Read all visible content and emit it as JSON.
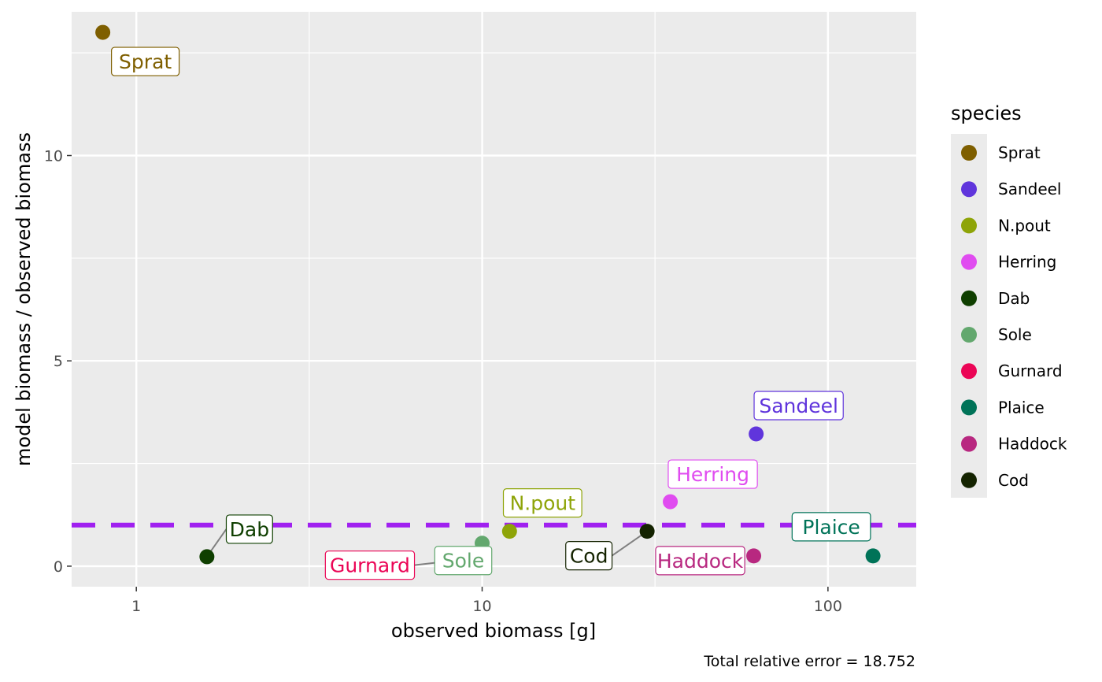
{
  "chart_data": {
    "type": "scatter",
    "title": "",
    "xlabel": "observed biomass [g]",
    "ylabel": "model biomass / observed biomass",
    "caption": "Total relative error = 18.752",
    "x_scale": "log10",
    "xlim": [
      0.65,
      180
    ],
    "ylim": [
      -0.5,
      13.5
    ],
    "x_ticks": [
      1,
      10,
      100
    ],
    "x_tick_labels": [
      "1",
      "10",
      "100"
    ],
    "y_ticks": [
      0,
      5,
      10
    ],
    "y_tick_labels": [
      "0",
      "5",
      "10"
    ],
    "reference_line": {
      "y": 1,
      "color": "#A020F0",
      "style": "dashed"
    },
    "legend": {
      "title": "species",
      "position": "right"
    },
    "points": [
      {
        "species": "Sprat",
        "x": 0.8,
        "y": 13.0,
        "color": "#7F5F00"
      },
      {
        "species": "Sandeel",
        "x": 62,
        "y": 3.22,
        "color": "#6035DC"
      },
      {
        "species": "N.pout",
        "x": 12,
        "y": 0.85,
        "color": "#8EA408"
      },
      {
        "species": "Herring",
        "x": 35,
        "y": 1.57,
        "color": "#E04CF0"
      },
      {
        "species": "Dab",
        "x": 1.6,
        "y": 0.23,
        "color": "#0F3F00"
      },
      {
        "species": "Sole",
        "x": 10,
        "y": 0.56,
        "color": "#63A86E"
      },
      {
        "species": "Gurnard",
        "x": 8,
        "y": 0.12,
        "color": "#EB0556"
      },
      {
        "species": "Plaice",
        "x": 135,
        "y": 0.25,
        "color": "#007358"
      },
      {
        "species": "Haddock",
        "x": 61,
        "y": 0.25,
        "color": "#B82880"
      },
      {
        "species": "Cod",
        "x": 30,
        "y": 0.85,
        "color": "#142300"
      }
    ]
  }
}
